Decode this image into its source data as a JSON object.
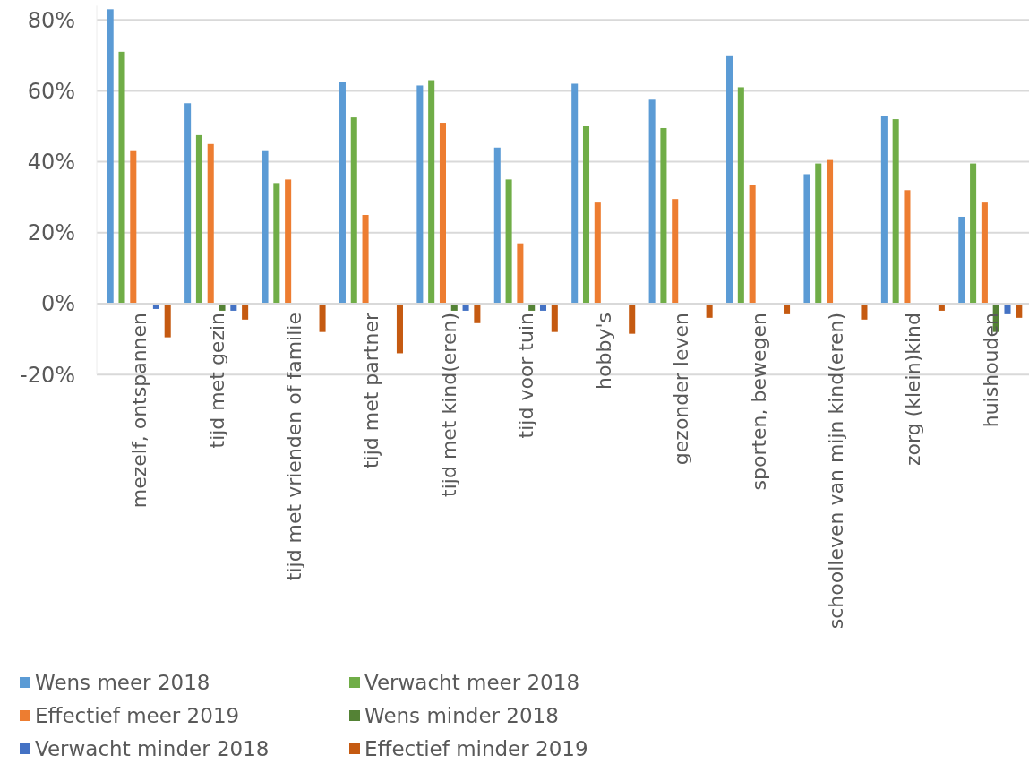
{
  "chart_data": {
    "type": "bar",
    "categories": [
      "mezelf, ontspannen",
      "tijd met gezin",
      "tijd met vrienden of familie",
      "tijd met partner",
      "tijd met kind(eren)",
      "tijd voor tuin",
      "hobby's",
      "gezonder leven",
      "sporten, bewegen",
      "schoolleven van mijn kind(eren)",
      "zorg (klein)kind",
      "huishouden"
    ],
    "series": [
      {
        "name": "Wens meer 2018",
        "color": "#5b9bd5",
        "values": [
          83,
          56.5,
          43,
          62.5,
          61.5,
          44,
          62,
          57.5,
          70,
          36.5,
          53,
          24.5
        ]
      },
      {
        "name": "Verwacht meer 2018",
        "color": "#70ad47",
        "values": [
          71,
          47.5,
          34,
          52.5,
          63,
          35,
          50,
          49.5,
          61,
          39.5,
          52,
          39.5
        ]
      },
      {
        "name": "Effectief meer 2019",
        "color": "#ed7d31",
        "values": [
          43,
          45,
          35,
          25,
          51,
          17,
          28.5,
          29.5,
          33.5,
          40.5,
          32,
          28.5
        ]
      },
      {
        "name": "Wens minder 2018",
        "color": "#548235",
        "values": [
          null,
          -2,
          null,
          null,
          -2,
          -2,
          null,
          null,
          null,
          null,
          null,
          -8
        ]
      },
      {
        "name": "Verwacht minder 2018",
        "color": "#4472c4",
        "values": [
          -1.5,
          -2,
          null,
          null,
          -2,
          -2,
          null,
          null,
          null,
          null,
          null,
          -3
        ]
      },
      {
        "name": "Effectief minder 2019",
        "color": "#c55a11",
        "values": [
          -9.5,
          -4.5,
          -8,
          -14,
          -5.5,
          -8,
          -8.5,
          -4,
          -3,
          -4.5,
          -2,
          -4
        ]
      }
    ],
    "ylim": [
      -20,
      84
    ],
    "yticks": [
      {
        "value": -20,
        "label": "-20%"
      },
      {
        "value": 0,
        "label": "0%"
      },
      {
        "value": 20,
        "label": "20%"
      },
      {
        "value": 40,
        "label": "40%"
      },
      {
        "value": 60,
        "label": "60%"
      },
      {
        "value": 80,
        "label": "80%"
      }
    ],
    "grid": "y",
    "legend": "bottom left"
  }
}
